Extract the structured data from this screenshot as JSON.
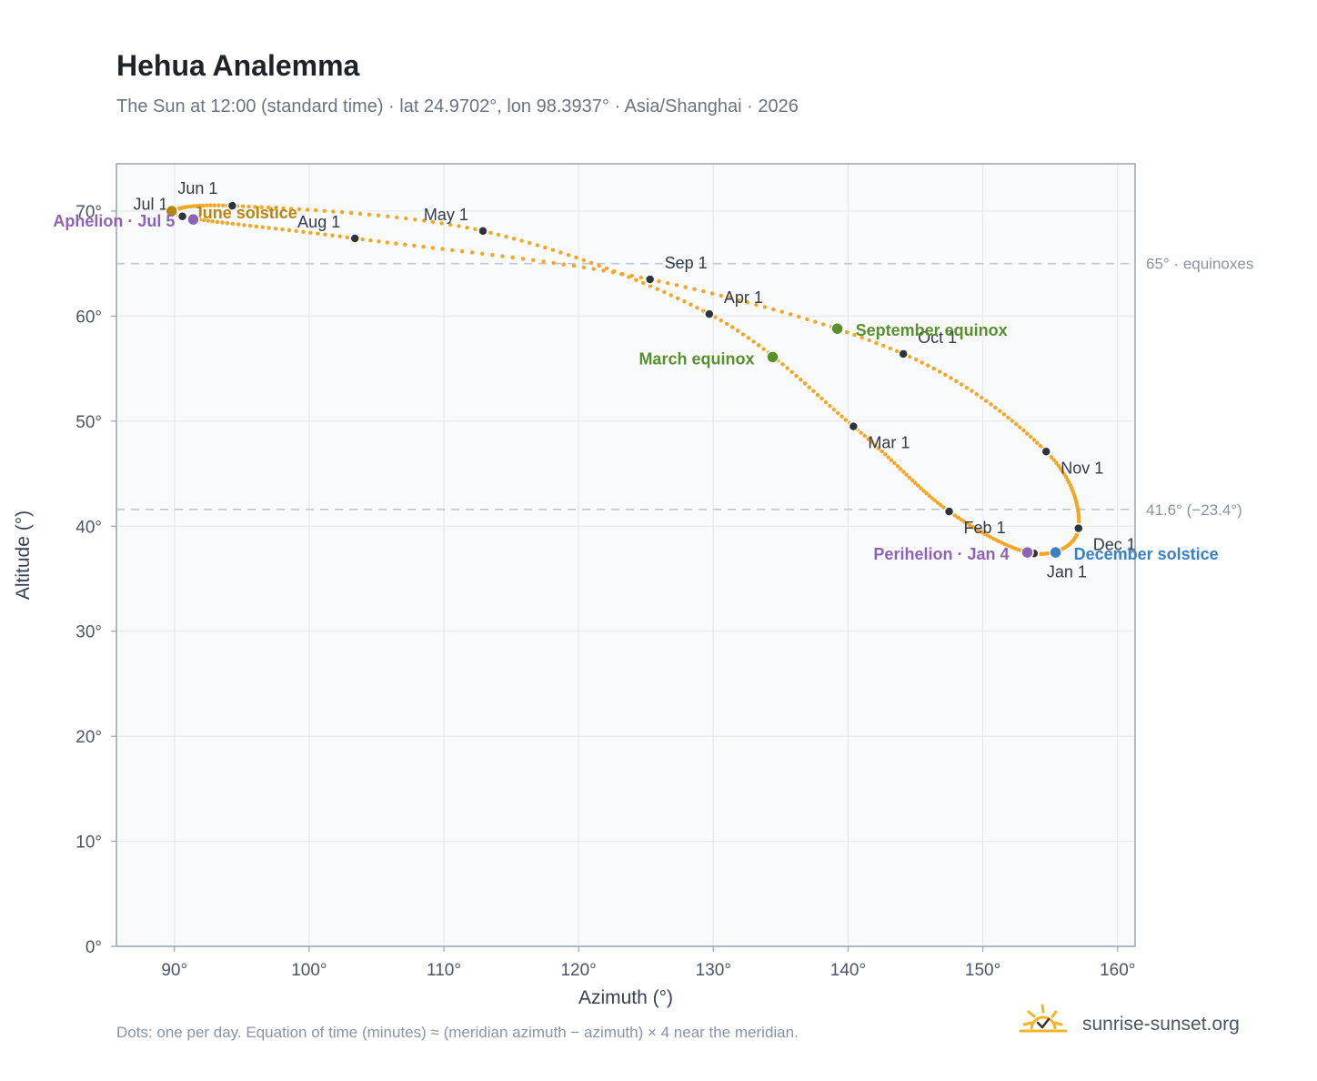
{
  "title": "Hehua Analemma",
  "subtitle": "The Sun at 12:00 (standard time) · lat 24.9702°, lon 98.3937° · Asia/Shanghai · 2026",
  "footnote": "Dots: one per day. Equation of time (minutes) ≈ (meridian azimuth − azimuth) × 4 near the meridian.",
  "brand": {
    "text": "sunrise-sunset.org",
    "icon": "sun-check-logo-icon"
  },
  "colors": {
    "curve": "#f5a623",
    "month_marker": "#2f343b",
    "solstice_june": "#b8860b",
    "solstice_december": "#3b7fc4",
    "equinox": "#5a8f2e",
    "apsis": "#8e63b5",
    "plot_bg": "#f8fafc",
    "grid": "#e5e9ef",
    "reference_line": "#c0c6ce"
  },
  "chart_data": {
    "type": "scatter",
    "xlabel": "Azimuth (°)",
    "ylabel": "Altitude (°)",
    "xlim": [
      85.7,
      161.3
    ],
    "ylim": [
      0,
      74.5
    ],
    "x_ticks": [
      "90°",
      "100°",
      "110°",
      "120°",
      "130°",
      "140°",
      "150°",
      "160°"
    ],
    "y_ticks": [
      "0°",
      "10°",
      "20°",
      "30°",
      "40°",
      "50°",
      "60°",
      "70°"
    ],
    "grid": true,
    "reference_lines": [
      {
        "altitude": 65,
        "label": "65° · equinoxes"
      },
      {
        "altitude": 41.6,
        "label": "41.6° (−23.4°)"
      }
    ],
    "series": [
      {
        "points": [
          [
            153.8,
            37.4
          ],
          [
            147.5,
            41.4
          ],
          [
            140.4,
            49.5
          ],
          [
            129.7,
            60.2
          ],
          [
            112.9,
            68.1
          ],
          [
            94.3,
            70.5
          ],
          [
            90.6,
            69.5
          ],
          [
            103.4,
            67.4
          ],
          [
            125.3,
            63.5
          ],
          [
            144.1,
            56.4
          ],
          [
            154.7,
            47.1
          ],
          [
            157.1,
            39.8
          ],
          [
            153.8,
            37.4
          ]
        ]
      }
    ],
    "month_markers": [
      {
        "label": "Jan 1",
        "x": 153.8,
        "y": 37.4
      },
      {
        "label": "Feb 1",
        "x": 147.5,
        "y": 41.4
      },
      {
        "label": "Mar 1",
        "x": 140.4,
        "y": 49.5
      },
      {
        "label": "Apr 1",
        "x": 129.7,
        "y": 60.2
      },
      {
        "label": "May 1",
        "x": 112.9,
        "y": 68.1
      },
      {
        "label": "Jun 1",
        "x": 94.3,
        "y": 70.5
      },
      {
        "label": "Jul 1",
        "x": 90.6,
        "y": 69.5
      },
      {
        "label": "Aug 1",
        "x": 103.4,
        "y": 67.4
      },
      {
        "label": "Sep 1",
        "x": 125.3,
        "y": 63.5
      },
      {
        "label": "Oct 1",
        "x": 144.1,
        "y": 56.4
      },
      {
        "label": "Nov 1",
        "x": 154.7,
        "y": 47.1
      },
      {
        "label": "Dec 1",
        "x": 157.1,
        "y": 39.8
      }
    ],
    "events": [
      {
        "label": "June solstice",
        "x": 89.8,
        "y": 70.0,
        "kind": "solstice_june"
      },
      {
        "label": "December solstice",
        "x": 155.4,
        "y": 37.5,
        "kind": "solstice_december"
      },
      {
        "label": "March equinox",
        "x": 134.4,
        "y": 56.1,
        "kind": "equinox"
      },
      {
        "label": "September equinox",
        "x": 139.2,
        "y": 58.8,
        "kind": "equinox"
      },
      {
        "label": "Aphelion · Jul 5",
        "x": 91.4,
        "y": 69.2,
        "kind": "apsis"
      },
      {
        "label": "Perihelion · Jan 4",
        "x": 153.3,
        "y": 37.5,
        "kind": "apsis"
      }
    ]
  }
}
